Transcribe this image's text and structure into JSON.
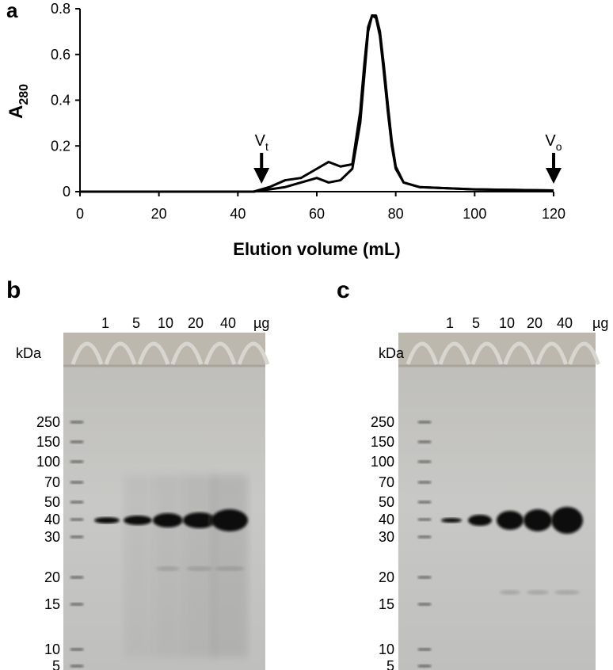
{
  "chart_data": {
    "type": "line",
    "panel_label": "a",
    "ylabel": {
      "text": "A",
      "sub": "280"
    },
    "xlabel": "Elution volume (mL)",
    "x": [
      0,
      44,
      48,
      52,
      56,
      60,
      63,
      66,
      69,
      71,
      72,
      73,
      74,
      75,
      76,
      77,
      78,
      79,
      80,
      82,
      86,
      100,
      120
    ],
    "series": [
      {
        "color": "#000000",
        "values": [
          0,
          0,
          0.02,
          0.05,
          0.06,
          0.1,
          0.13,
          0.11,
          0.12,
          0.35,
          0.55,
          0.72,
          0.77,
          0.76,
          0.68,
          0.52,
          0.35,
          0.2,
          0.1,
          0.04,
          0.02,
          0.01,
          0.005
        ]
      },
      {
        "color": "#000000",
        "values": [
          0,
          0,
          0.01,
          0.02,
          0.04,
          0.06,
          0.04,
          0.05,
          0.1,
          0.3,
          0.5,
          0.7,
          0.77,
          0.77,
          0.7,
          0.55,
          0.38,
          0.22,
          0.11,
          0.04,
          0.02,
          0.01,
          0.005
        ]
      }
    ],
    "annotations": [
      {
        "text": "V",
        "sub": "t",
        "x": 46
      },
      {
        "text": "V",
        "sub": "o",
        "x": 120
      }
    ],
    "xlim": [
      0,
      120
    ],
    "xticks": [
      0,
      20,
      40,
      60,
      80,
      100,
      120
    ],
    "ylim": [
      0,
      0.8
    ],
    "yticks": [
      0,
      0.2,
      0.4,
      0.6,
      0.8
    ]
  },
  "gels": [
    {
      "panel_label": "b",
      "lanes": [
        "1",
        "5",
        "10",
        "20",
        "40"
      ],
      "unit": "µg",
      "kda_label": "kDa",
      "markers": [
        "250",
        "150",
        "100",
        "70",
        "50",
        "40",
        "30",
        "20",
        "15",
        "10",
        "5"
      ]
    },
    {
      "panel_label": "c",
      "lanes": [
        "1",
        "5",
        "10",
        "20",
        "40"
      ],
      "unit": "µg",
      "kda_label": "kDa",
      "markers": [
        "250",
        "150",
        "100",
        "70",
        "50",
        "40",
        "30",
        "20",
        "15",
        "10",
        "5"
      ]
    }
  ]
}
